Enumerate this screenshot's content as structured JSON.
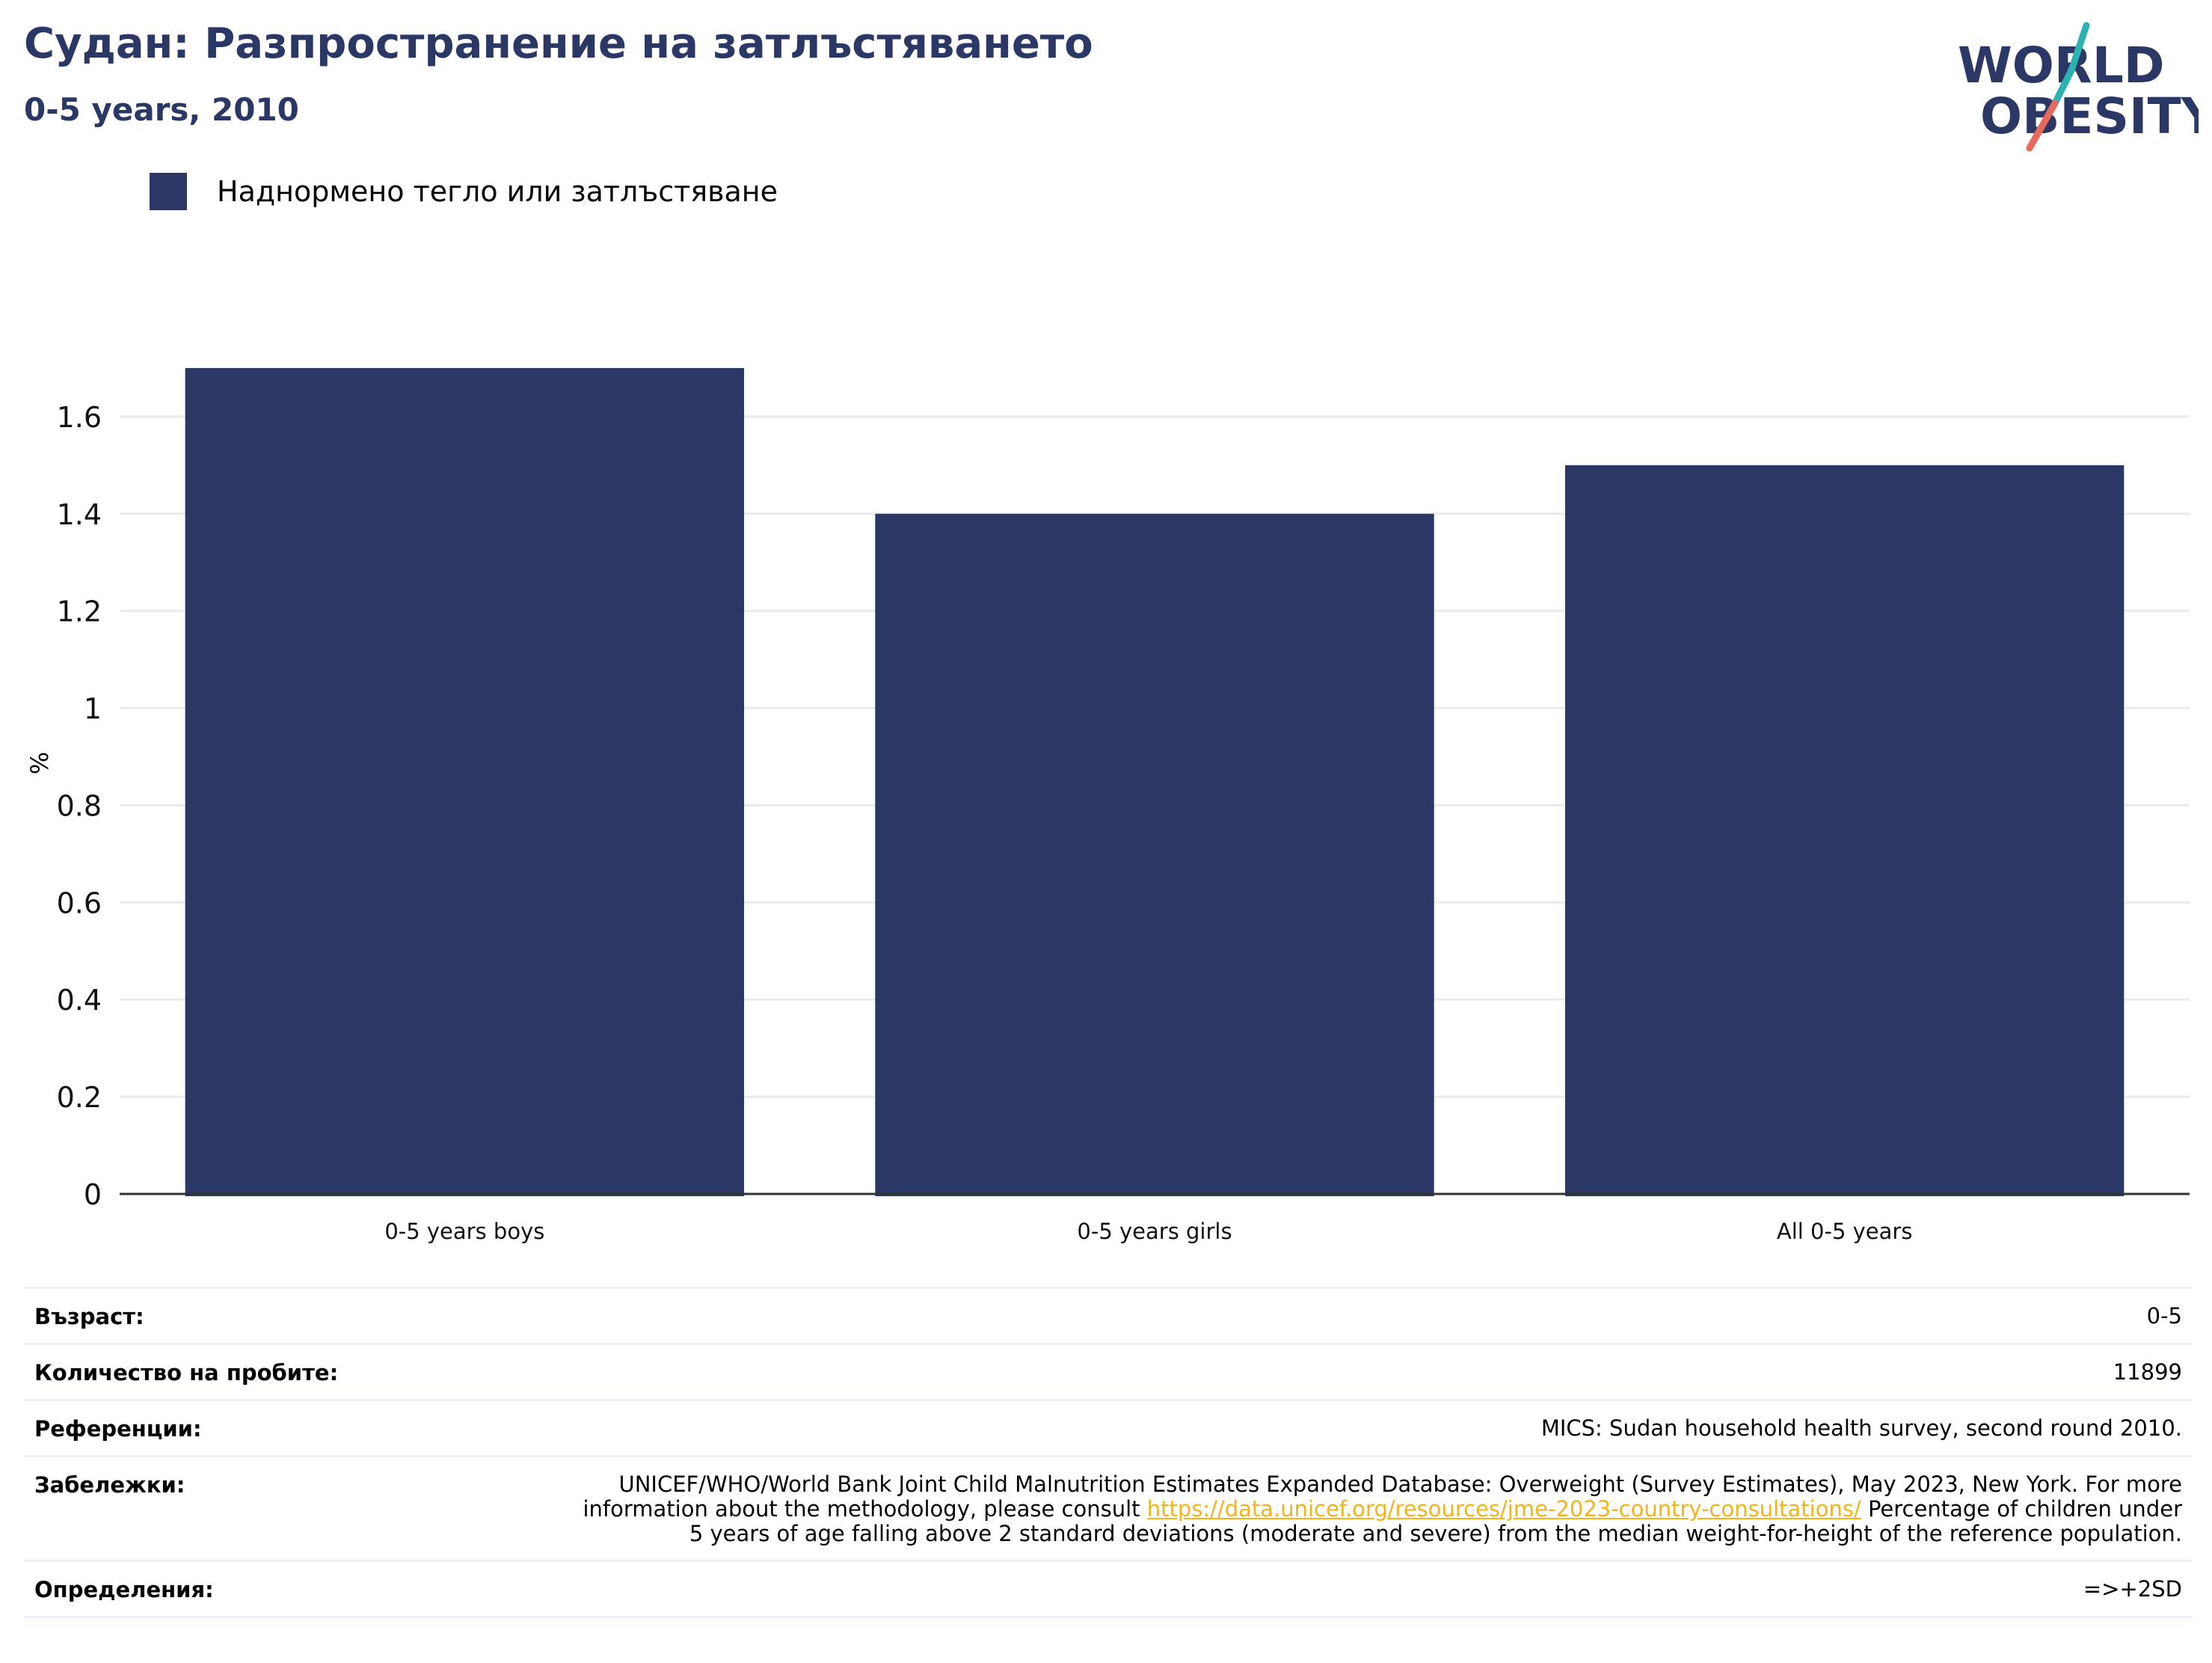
{
  "header": {
    "title": "Судан: Разпространение на затлъстяването",
    "subtitle": "0-5 years, 2010"
  },
  "logo": {
    "line1": "WORLD",
    "line2": "OBESITY",
    "colors": [
      "#2b3765",
      "#2bb3b1",
      "#e8695c"
    ]
  },
  "chart_data": {
    "type": "bar",
    "categories": [
      "0-5 years boys",
      "0-5 years girls",
      "All 0-5 years"
    ],
    "series": [
      {
        "name": "Наднормено тегло или затлъстяване",
        "values": [
          1.7,
          1.4,
          1.5
        ],
        "color": "#2b3765"
      }
    ],
    "ylabel": "%",
    "xlabel": "",
    "ylim": [
      0,
      1.78
    ],
    "yticks": [
      0,
      0.2,
      0.4,
      0.6,
      0.8,
      1,
      1.2,
      1.4,
      1.6
    ],
    "ytick_labels": [
      "0",
      "0.2",
      "0.4",
      "0.6",
      "0.8",
      "1",
      "1.2",
      "1.4",
      "1.6"
    ],
    "grid": true,
    "legend_position": "top-left"
  },
  "info": {
    "age_label": "Възраст:",
    "age_value": "0-5",
    "sample_label": "Количество на пробите:",
    "sample_value": "11899",
    "references_label": "Референции:",
    "references_value": "MICS: Sudan household health survey, second round 2010.",
    "notes_label": "Забележки:",
    "notes_text_1": "UNICEF/WHO/World Bank Joint Child Malnutrition Estimates Expanded Database: Overweight (Survey Estimates), May 2023, New York. For more information about the methodology, please consult",
    "notes_link": "https://data.unicef.org/resources/jme-2023-country-consultations/",
    "notes_text_2": "Percentage of children under 5 years of age falling above 2 standard deviations (moderate and severe) from the median weight-for-height of the reference population.",
    "definitions_label": "Определения:",
    "definitions_value": "=>+2SD"
  }
}
